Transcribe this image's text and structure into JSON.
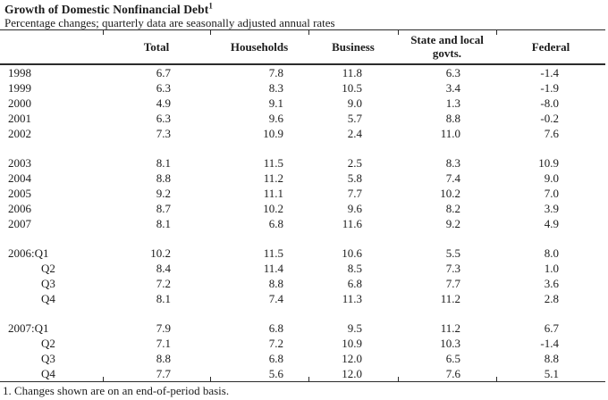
{
  "page": {
    "title": "Growth of Domestic Nonfinancial Debt",
    "title_footnote_marker": "1",
    "subtitle": "Percentage changes; quarterly data are seasonally adjusted annual rates",
    "footnote": "1. Changes shown are on an end-of-period basis."
  },
  "table": {
    "columns": [
      "Total",
      "Households",
      "Business",
      "State and local govts.",
      "Federal"
    ],
    "groups": [
      {
        "name": "annual-1998-2002",
        "rows": [
          {
            "label": "1998",
            "values": [
              "6.7",
              "7.8",
              "11.8",
              "6.3",
              "-1.4"
            ]
          },
          {
            "label": "1999",
            "values": [
              "6.3",
              "8.3",
              "10.5",
              "3.4",
              "-1.9"
            ]
          },
          {
            "label": "2000",
            "values": [
              "4.9",
              "9.1",
              "9.0",
              "1.3",
              "-8.0"
            ]
          },
          {
            "label": "2001",
            "values": [
              "6.3",
              "9.6",
              "5.7",
              "8.8",
              "-0.2"
            ]
          },
          {
            "label": "2002",
            "values": [
              "7.3",
              "10.9",
              "2.4",
              "11.0",
              "7.6"
            ]
          }
        ]
      },
      {
        "name": "annual-2003-2007",
        "rows": [
          {
            "label": "2003",
            "values": [
              "8.1",
              "11.5",
              "2.5",
              "8.3",
              "10.9"
            ]
          },
          {
            "label": "2004",
            "values": [
              "8.8",
              "11.2",
              "5.8",
              "7.4",
              "9.0"
            ]
          },
          {
            "label": "2005",
            "values": [
              "9.2",
              "11.1",
              "7.7",
              "10.2",
              "7.0"
            ]
          },
          {
            "label": "2006",
            "values": [
              "8.7",
              "10.2",
              "9.6",
              "8.2",
              "3.9"
            ]
          },
          {
            "label": "2007",
            "values": [
              "8.1",
              "6.8",
              "11.6",
              "9.2",
              "4.9"
            ]
          }
        ]
      },
      {
        "name": "quarterly-2006",
        "rows": [
          {
            "label": "2006:Q1",
            "values": [
              "10.2",
              "11.5",
              "10.6",
              "5.5",
              "8.0"
            ]
          },
          {
            "label": "Q2",
            "values": [
              "8.4",
              "11.4",
              "8.5",
              "7.3",
              "1.0"
            ]
          },
          {
            "label": "Q3",
            "values": [
              "7.2",
              "8.8",
              "6.8",
              "7.7",
              "3.6"
            ]
          },
          {
            "label": "Q4",
            "values": [
              "8.1",
              "7.4",
              "11.3",
              "11.2",
              "2.8"
            ]
          }
        ]
      },
      {
        "name": "quarterly-2007",
        "rows": [
          {
            "label": "2007:Q1",
            "values": [
              "7.9",
              "6.8",
              "9.5",
              "11.2",
              "6.7"
            ]
          },
          {
            "label": "Q2",
            "values": [
              "7.1",
              "7.2",
              "10.9",
              "10.3",
              "-1.4"
            ]
          },
          {
            "label": "Q3",
            "values": [
              "8.8",
              "6.8",
              "12.0",
              "6.5",
              "8.8"
            ]
          },
          {
            "label": "Q4",
            "values": [
              "7.7",
              "5.6",
              "12.0",
              "7.6",
              "5.1"
            ]
          }
        ]
      }
    ]
  }
}
